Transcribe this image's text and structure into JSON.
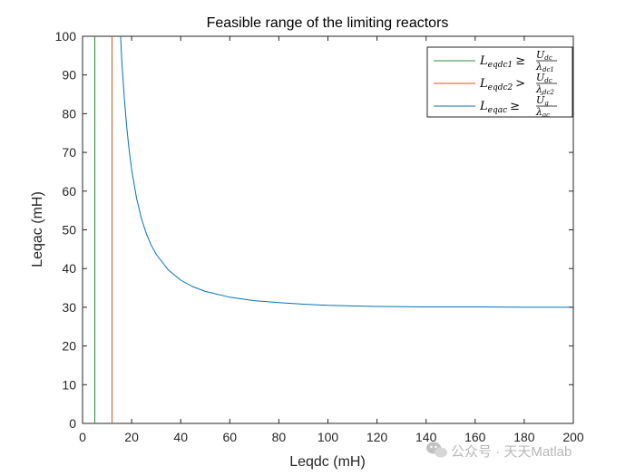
{
  "chart_data": {
    "type": "line",
    "title": "Feasible range of the limiting reactors",
    "xlabel": "Leqdc (mH)",
    "ylabel": "Leqac (mH)",
    "xlim": [
      0,
      200
    ],
    "ylim": [
      0,
      100
    ],
    "xticks": [
      0,
      20,
      40,
      60,
      80,
      100,
      120,
      140,
      160,
      180,
      200
    ],
    "yticks": [
      0,
      10,
      20,
      30,
      40,
      50,
      60,
      70,
      80,
      90,
      100
    ],
    "grid": false,
    "legend_position": "top-right",
    "series": [
      {
        "name_main": "L",
        "name_sub": "eqdc1",
        "name_rel": "≥",
        "name_frac_top": "U",
        "name_frac_top_sub": "dc",
        "name_frac_bottom": "λ",
        "name_frac_bottom_sub": "dc1",
        "color": "#2e8b3a",
        "kind": "vertical",
        "x": 5
      },
      {
        "name_main": "L",
        "name_sub": "eqdc2",
        "name_rel": ">",
        "name_frac_top": "U",
        "name_frac_top_sub": "dc",
        "name_frac_bottom": "λ",
        "name_frac_bottom_sub": "dc2",
        "color": "#d95319",
        "kind": "vertical",
        "x": 12
      },
      {
        "name_main": "L",
        "name_sub": "eqac",
        "name_rel": "≥",
        "name_frac_top": "Û",
        "name_frac_top_sub": "g",
        "name_frac_bottom": "λ",
        "name_frac_bottom_sub": "ac",
        "color": "#0072bd",
        "kind": "curve",
        "x": [
          15.5,
          16,
          17,
          18,
          19,
          20,
          22,
          24,
          26,
          28,
          30,
          35,
          40,
          45,
          50,
          60,
          70,
          80,
          90,
          100,
          120,
          140,
          160,
          180,
          200
        ],
        "y": [
          100,
          93.6,
          84.1,
          76.6,
          70.5,
          65.6,
          58.2,
          52.9,
          49.0,
          46.0,
          43.7,
          39.6,
          37.0,
          35.3,
          34.1,
          32.6,
          31.7,
          31.2,
          30.8,
          30.5,
          30.2,
          30.1,
          30.1,
          30.0,
          30.0
        ]
      }
    ]
  },
  "watermark": {
    "text": "公众号 · 天天Matlab",
    "icon": "wechat-icon"
  }
}
